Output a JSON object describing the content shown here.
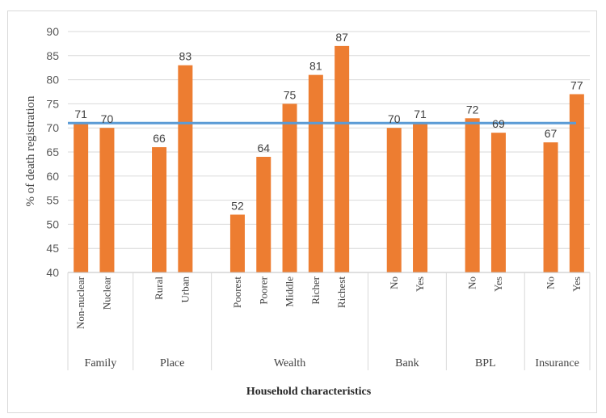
{
  "chart_data": {
    "type": "bar",
    "xlabel": "Household characteristics",
    "ylabel": "% of death registration",
    "ylim": [
      40,
      90
    ],
    "yticks": [
      40,
      45,
      50,
      55,
      60,
      65,
      70,
      75,
      80,
      85,
      90
    ],
    "grid": true,
    "reference_line": 71,
    "groups": [
      {
        "name": "Family",
        "categories": [
          "Non-nuclear",
          "Nuclear"
        ],
        "values": [
          71,
          70
        ]
      },
      {
        "name": "Place",
        "categories": [
          "Rural",
          "Urban"
        ],
        "values": [
          66,
          83
        ]
      },
      {
        "name": "Wealth",
        "categories": [
          "Poorest",
          "Poorer",
          "Middle",
          "Richer",
          "Richest"
        ],
        "values": [
          52,
          64,
          75,
          81,
          87
        ]
      },
      {
        "name": "Bank",
        "categories": [
          "No",
          "Yes"
        ],
        "values": [
          70,
          71
        ]
      },
      {
        "name": "BPL",
        "categories": [
          "No",
          "Yes"
        ],
        "values": [
          72,
          69
        ]
      },
      {
        "name": "Insurance",
        "categories": [
          "No",
          "Yes"
        ],
        "values": [
          67,
          77
        ]
      }
    ],
    "colors": {
      "bar": "#ED7D31",
      "line": "#5B9BD5",
      "grid": "#D9D9D9"
    }
  }
}
